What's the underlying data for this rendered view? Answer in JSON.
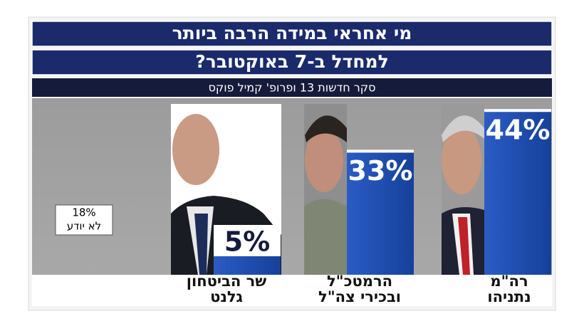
{
  "chart_data": {
    "type": "bar",
    "title": "מי אחראי במידה הרבה ביותר",
    "subtitle": "למחדל ב-7 באוקטובר?",
    "source": "סקר חדשות 13 ופרופ' קמיל פוקס",
    "categories": [
      [
        "שר הביטחון",
        "גלנט"
      ],
      [
        "הרמטכ\"ל",
        "ובכירי צה\"ל"
      ],
      [
        "רה\"מ",
        "נתניהו"
      ]
    ],
    "values": [
      5,
      33,
      44
    ],
    "value_labels": [
      "5%",
      "33%",
      "44%"
    ],
    "color": "#1d4cb0",
    "other": {
      "name": "לא יודע",
      "value": 18,
      "value_label": "18%"
    }
  }
}
